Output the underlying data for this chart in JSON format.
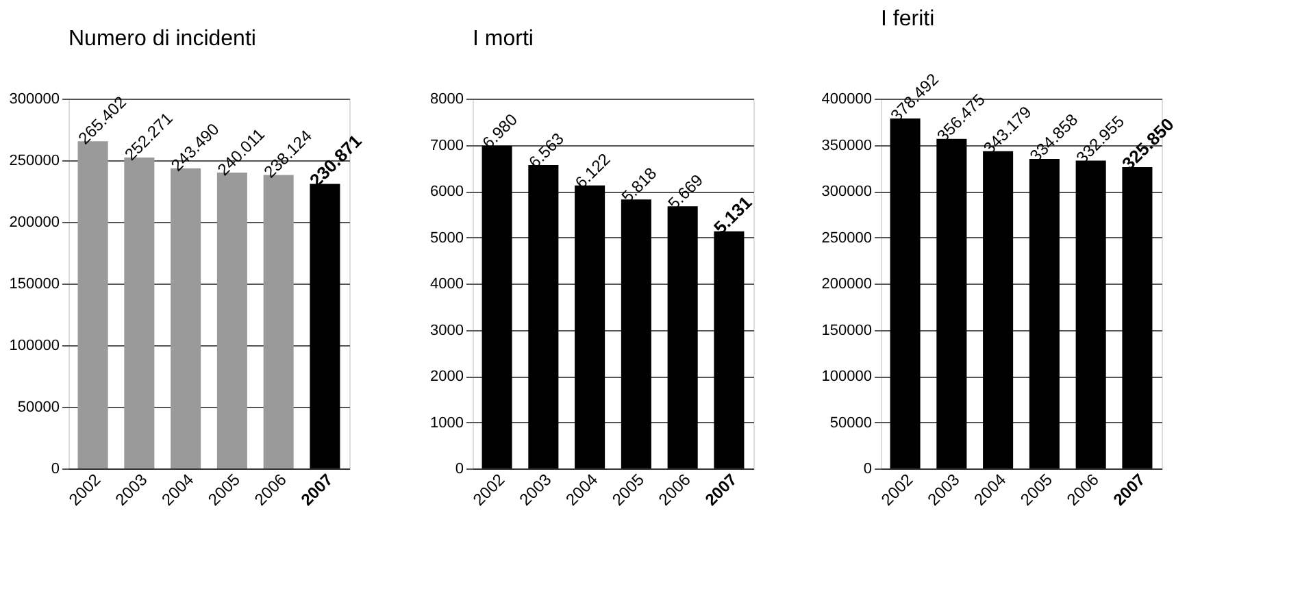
{
  "chart_data": [
    {
      "type": "bar",
      "title": "Numero di incidenti",
      "categories": [
        "2002",
        "2003",
        "2004",
        "2005",
        "2006",
        "2007"
      ],
      "values": [
        265402,
        252271,
        243490,
        240011,
        238124,
        230871
      ],
      "value_labels": [
        "265.402",
        "252.271",
        "243.490",
        "240.011",
        "238.124",
        "230.871"
      ],
      "colors": [
        "#9a9a9a",
        "#9a9a9a",
        "#9a9a9a",
        "#9a9a9a",
        "#9a9a9a",
        "#000000"
      ],
      "ylim": [
        0,
        300000
      ],
      "yticks": [
        0,
        50000,
        100000,
        150000,
        200000,
        250000,
        300000
      ],
      "grid": "y"
    },
    {
      "type": "bar",
      "title": "I morti",
      "categories": [
        "2002",
        "2003",
        "2004",
        "2005",
        "2006",
        "2007"
      ],
      "values": [
        6980,
        6563,
        6122,
        5818,
        5669,
        5131
      ],
      "value_labels": [
        "6.980",
        "6.563",
        "6.122",
        "5.818",
        "5.669",
        "5.131"
      ],
      "colors": [
        "#000000",
        "#000000",
        "#000000",
        "#000000",
        "#000000",
        "#000000"
      ],
      "ylim": [
        0,
        8000
      ],
      "yticks": [
        0,
        1000,
        2000,
        3000,
        4000,
        5000,
        6000,
        7000,
        8000
      ],
      "grid": "y"
    },
    {
      "type": "bar",
      "title": "I feriti",
      "categories": [
        "2002",
        "2003",
        "2004",
        "2005",
        "2006",
        "2007"
      ],
      "values": [
        378492,
        356475,
        343179,
        334858,
        332955,
        325850
      ],
      "value_labels": [
        "378.492",
        "356.475",
        "343.179",
        "334.858",
        "332.955",
        "325.850"
      ],
      "colors": [
        "#000000",
        "#000000",
        "#000000",
        "#000000",
        "#000000",
        "#000000"
      ],
      "ylim": [
        0,
        400000
      ],
      "yticks": [
        0,
        50000,
        100000,
        150000,
        200000,
        250000,
        300000,
        350000,
        400000
      ],
      "grid": "y"
    }
  ]
}
